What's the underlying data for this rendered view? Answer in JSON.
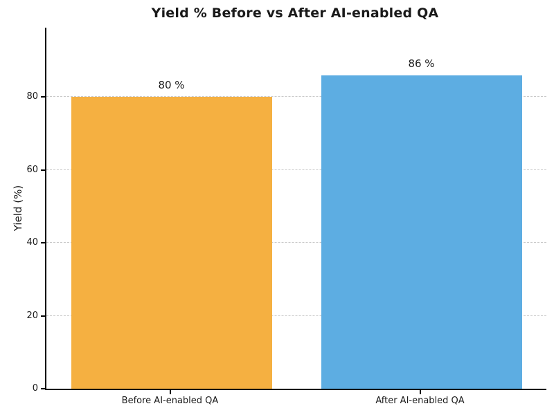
{
  "chart_data": {
    "type": "bar",
    "title": "Yield % Before vs After AI-enabled QA",
    "categories": [
      "Before AI-enabled QA",
      "After AI-enabled QA"
    ],
    "values": [
      80,
      86
    ],
    "value_labels": [
      "80 %",
      "86 %"
    ],
    "bar_colors": [
      "#f5b041",
      "#5dade2"
    ],
    "xlabel": "",
    "ylabel": "Yield (%)",
    "yticks": [
      0,
      20,
      40,
      60,
      80
    ],
    "ylim": [
      0,
      99
    ],
    "grid": "horizontal dashed gridlines at y ticks",
    "legend": "none",
    "background": "#ffffff"
  },
  "colors": {
    "title_text": "#1a1a1a",
    "axis_line": "#000000",
    "tick_text": "#1a1a1a",
    "gridline": "#c9c9c9",
    "bar_before": "#f5b041",
    "bar_after": "#5dade2"
  }
}
